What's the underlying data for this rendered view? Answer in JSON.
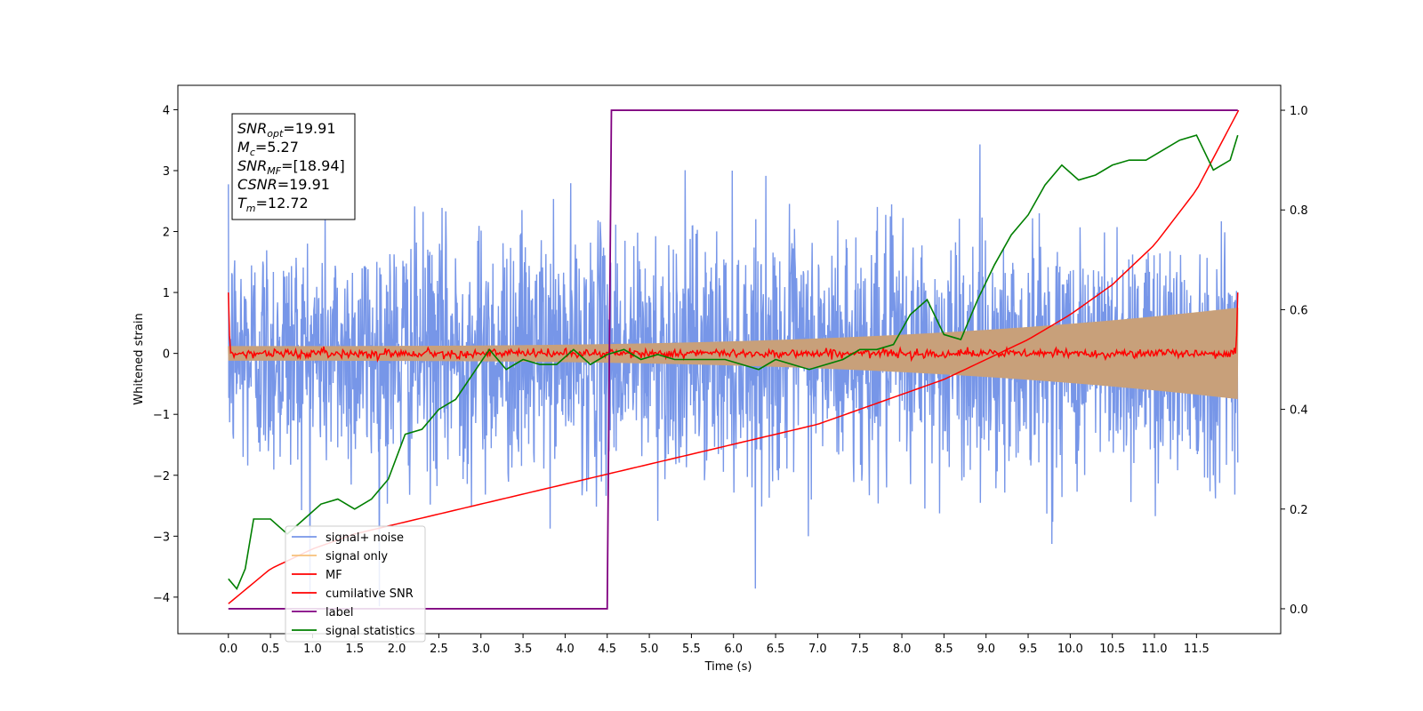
{
  "chart_data": {
    "type": "line",
    "xlabel": "Time (s)",
    "ylabel": "Whitened strain",
    "xlim": [
      -0.6,
      12.5
    ],
    "ylim": [
      -4.6,
      4.4
    ],
    "y2lim": [
      -0.05,
      1.05
    ],
    "grid": false,
    "x_ticks": [
      "0.0",
      "0.5",
      "1.0",
      "1.5",
      "2.0",
      "2.5",
      "3.0",
      "3.5",
      "4.0",
      "4.5",
      "5.0",
      "5.5",
      "6.0",
      "6.5",
      "7.0",
      "7.5",
      "8.0",
      "8.5",
      "9.0",
      "9.5",
      "10.0",
      "10.5",
      "11.0",
      "11.5"
    ],
    "y_ticks": [
      "4",
      "3",
      "2",
      "1",
      "0",
      "−1",
      "−2",
      "−3",
      "−4"
    ],
    "y2_ticks": [
      "1.0",
      "0.8",
      "0.6",
      "0.4",
      "0.2",
      "0.0"
    ],
    "annotation": {
      "lines": [
        {
          "main": "SNR",
          "sub": "opt",
          "value": "=19.91"
        },
        {
          "main": "M",
          "sub": "c",
          "value": "=5.27"
        },
        {
          "main": "SNR",
          "sub": "MF",
          "value": "=[18.94]"
        },
        {
          "main": "CSNR",
          "sub": "",
          "value": "=19.91"
        },
        {
          "main": "T",
          "sub": "m",
          "value": "=12.72"
        }
      ]
    },
    "legend": {
      "placement": "lower-left",
      "entries": [
        {
          "label": "signal+ noise",
          "color": "#7796e8"
        },
        {
          "label": "signal only",
          "color": "#f7c07a"
        },
        {
          "label": "MF",
          "color": "#ff0000"
        },
        {
          "label": "cumilative SNR",
          "color": "#ff0000"
        },
        {
          "label": "label",
          "color": "#800080"
        },
        {
          "label": "signal statistics",
          "color": "#007f00"
        }
      ]
    },
    "series": [
      {
        "name": "signal+ noise",
        "axis": "left",
        "color": "#7796e8",
        "x_range": [
          0,
          11.99
        ],
        "noise_std": 1.0,
        "y_min": -4.15,
        "y_max": 4.0
      },
      {
        "name": "signal only",
        "axis": "left",
        "color": "#c8a07a",
        "x_range": [
          0,
          11.99
        ],
        "envelope_start": 0.12,
        "envelope_end": 0.75
      },
      {
        "name": "MF",
        "axis": "left",
        "color": "#ff0000",
        "x_range": [
          0,
          11.99
        ],
        "peaks": [
          [
            0,
            1.0
          ],
          [
            11.99,
            1.0
          ]
        ],
        "baseline": 0.0
      },
      {
        "name": "cumilative SNR",
        "axis": "right",
        "color": "#ff0000",
        "x": [
          0,
          0.5,
          1.0,
          1.5,
          2.0,
          2.5,
          3.0,
          3.5,
          4.0,
          4.5,
          5.0,
          5.5,
          6.0,
          6.5,
          7.0,
          7.5,
          8.0,
          8.5,
          9.0,
          9.5,
          10.0,
          10.5,
          11.0,
          11.5,
          12.0
        ],
        "y": [
          0.01,
          0.08,
          0.12,
          0.15,
          0.17,
          0.19,
          0.21,
          0.23,
          0.25,
          0.27,
          0.29,
          0.31,
          0.33,
          0.35,
          0.37,
          0.4,
          0.43,
          0.46,
          0.5,
          0.54,
          0.59,
          0.65,
          0.73,
          0.84,
          1.0
        ]
      },
      {
        "name": "label",
        "axis": "right",
        "color": "#800080",
        "x": [
          0,
          4.5,
          4.55,
          11.99
        ],
        "y": [
          0.0,
          0.0,
          1.0,
          1.0
        ]
      },
      {
        "name": "signal statistics",
        "axis": "right",
        "color": "#007f00",
        "x": [
          0,
          0.1,
          0.2,
          0.3,
          0.5,
          0.7,
          0.9,
          1.1,
          1.3,
          1.5,
          1.7,
          1.9,
          2.1,
          2.3,
          2.5,
          2.7,
          2.9,
          3.1,
          3.3,
          3.5,
          3.7,
          3.9,
          4.1,
          4.3,
          4.5,
          4.7,
          4.9,
          5.1,
          5.3,
          5.5,
          5.7,
          5.9,
          6.1,
          6.3,
          6.5,
          6.7,
          6.9,
          7.1,
          7.3,
          7.5,
          7.7,
          7.9,
          8.1,
          8.3,
          8.5,
          8.7,
          8.9,
          9.1,
          9.3,
          9.5,
          9.7,
          9.9,
          10.1,
          10.3,
          10.5,
          10.7,
          10.9,
          11.1,
          11.3,
          11.5,
          11.7,
          11.9,
          11.99
        ],
        "y": [
          0.06,
          0.04,
          0.08,
          0.18,
          0.18,
          0.15,
          0.18,
          0.21,
          0.22,
          0.2,
          0.22,
          0.26,
          0.35,
          0.36,
          0.4,
          0.42,
          0.47,
          0.52,
          0.48,
          0.5,
          0.49,
          0.49,
          0.52,
          0.49,
          0.51,
          0.52,
          0.5,
          0.51,
          0.5,
          0.5,
          0.5,
          0.5,
          0.49,
          0.48,
          0.5,
          0.49,
          0.48,
          0.49,
          0.5,
          0.52,
          0.52,
          0.53,
          0.59,
          0.62,
          0.55,
          0.54,
          0.62,
          0.69,
          0.75,
          0.79,
          0.85,
          0.89,
          0.86,
          0.87,
          0.89,
          0.9,
          0.9,
          0.92,
          0.94,
          0.95,
          0.88,
          0.9,
          0.95
        ]
      }
    ]
  }
}
